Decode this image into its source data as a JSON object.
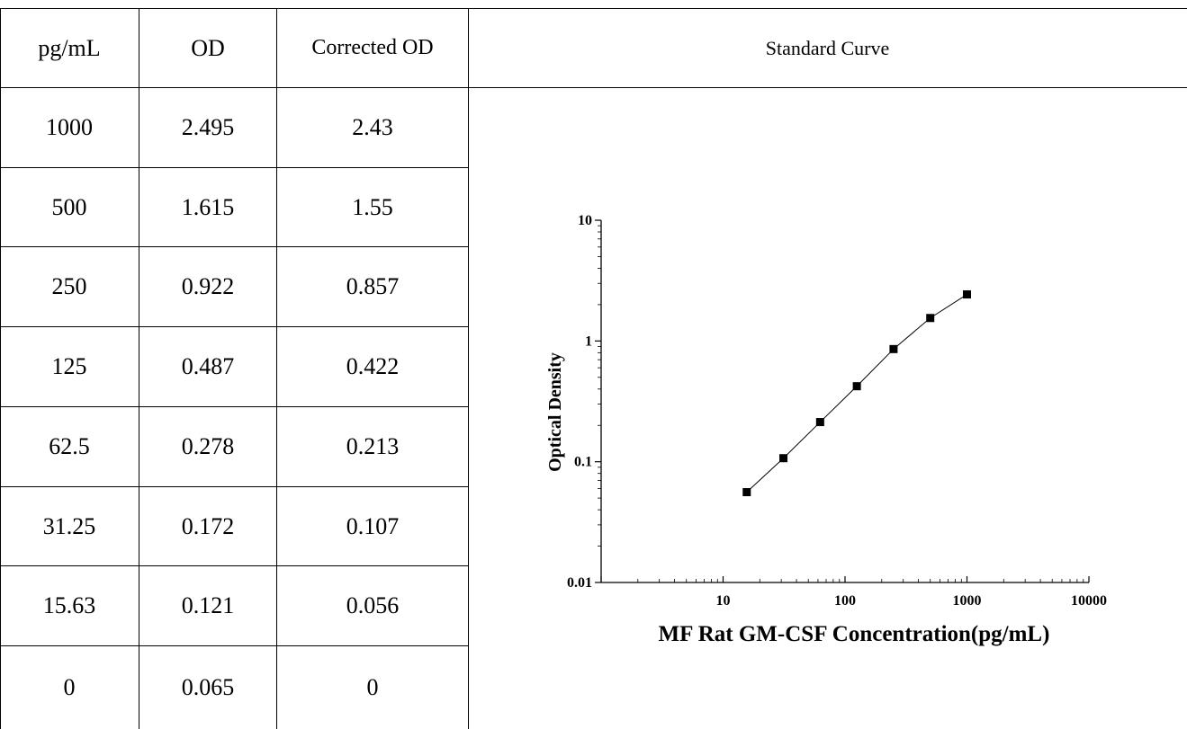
{
  "table": {
    "headers": [
      "pg/mL",
      "OD",
      "Corrected OD"
    ],
    "rows": [
      [
        "1000",
        "2.495",
        "2.43"
      ],
      [
        "500",
        "1.615",
        "1.55"
      ],
      [
        "250",
        "0.922",
        "0.857"
      ],
      [
        "125",
        "0.487",
        "0.422"
      ],
      [
        "62.5",
        "0.278",
        "0.213"
      ],
      [
        "31.25",
        "0.172",
        "0.107"
      ],
      [
        "15.63",
        "0.121",
        "0.056"
      ],
      [
        "0",
        "0.065",
        "0"
      ]
    ]
  },
  "chart_header": "Standard Curve",
  "chart_data": {
    "type": "scatter",
    "xlabel": "MF Rat GM-CSF Concentration(pg/mL)",
    "ylabel": "Optical Density",
    "xscale": "log",
    "yscale": "log",
    "xlim": [
      1,
      10000
    ],
    "ylim": [
      0.01,
      10
    ],
    "xticks": [
      10,
      100,
      1000,
      10000
    ],
    "xtick_labels": [
      "10",
      "100",
      "1000",
      "10000"
    ],
    "yticks": [
      0.01,
      0.1,
      1,
      10
    ],
    "ytick_labels": [
      "0.01",
      "0.1",
      "1",
      "10"
    ],
    "series": [
      {
        "x": [
          1000,
          500,
          250,
          125,
          62.5,
          31.25,
          15.63
        ],
        "y": [
          2.43,
          1.55,
          0.857,
          0.422,
          0.213,
          0.107,
          0.056
        ],
        "marker": "square",
        "fit_line": true
      }
    ],
    "grid": false,
    "color": "#000000"
  }
}
